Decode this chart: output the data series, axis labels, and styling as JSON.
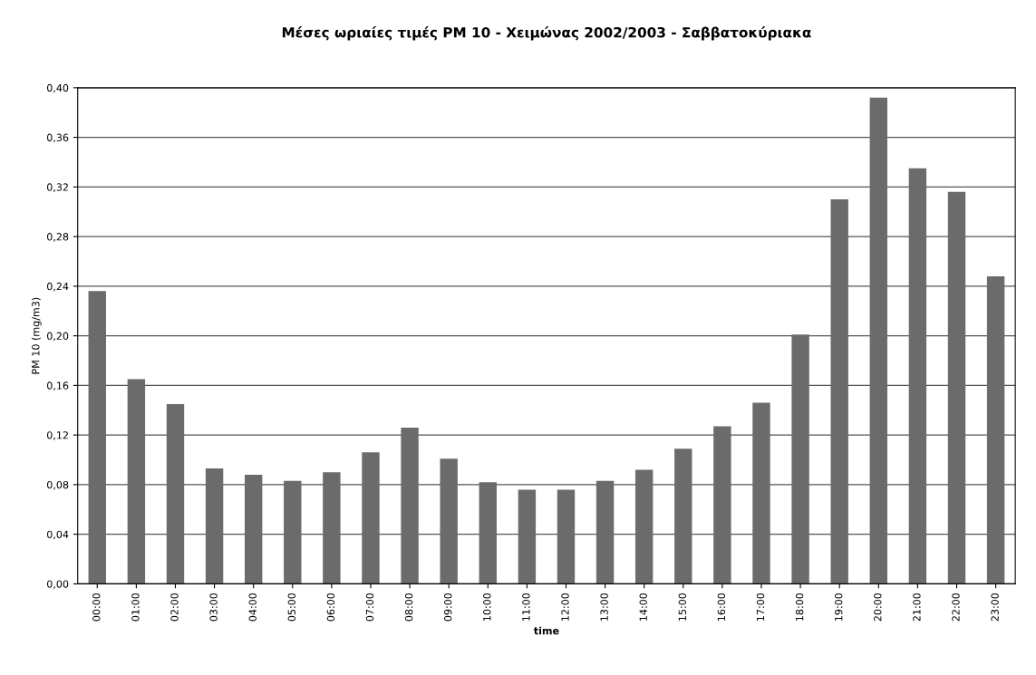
{
  "chart_data": {
    "type": "bar",
    "title": "Μέσες ωριαίες τιμές PM 10 - Χειμώνας 2002/2003 - Σαββατοκύριακα",
    "xlabel": "time",
    "ylabel": "PM 10 (mg/m3)",
    "categories": [
      "00:00",
      "01:00",
      "02:00",
      "03:00",
      "04:00",
      "05:00",
      "06:00",
      "07:00",
      "08:00",
      "09:00",
      "10:00",
      "11:00",
      "12:00",
      "13:00",
      "14:00",
      "15:00",
      "16:00",
      "17:00",
      "18:00",
      "19:00",
      "20:00",
      "21:00",
      "22:00",
      "23:00"
    ],
    "values": [
      0.236,
      0.165,
      0.145,
      0.093,
      0.088,
      0.083,
      0.09,
      0.106,
      0.126,
      0.101,
      0.082,
      0.076,
      0.076,
      0.083,
      0.092,
      0.109,
      0.127,
      0.146,
      0.201,
      0.31,
      0.392,
      0.335,
      0.316,
      0.248
    ],
    "color": "#6b6b6b",
    "ylim": [
      0,
      0.4
    ],
    "yticks": [
      {
        "value": 0,
        "label": "0,00"
      },
      {
        "value": 0.04,
        "label": "0,04"
      },
      {
        "value": 0.08,
        "label": "0,08"
      },
      {
        "value": 0.12,
        "label": "0,12"
      },
      {
        "value": 0.16,
        "label": "0,16"
      },
      {
        "value": 0.2,
        "label": "0,20"
      },
      {
        "value": 0.24,
        "label": "0,24"
      },
      {
        "value": 0.28,
        "label": "0,28"
      },
      {
        "value": 0.32,
        "label": "0,32"
      },
      {
        "value": 0.36,
        "label": "0,36"
      },
      {
        "value": 0.4,
        "label": "0,40"
      }
    ],
    "grid": "y"
  }
}
